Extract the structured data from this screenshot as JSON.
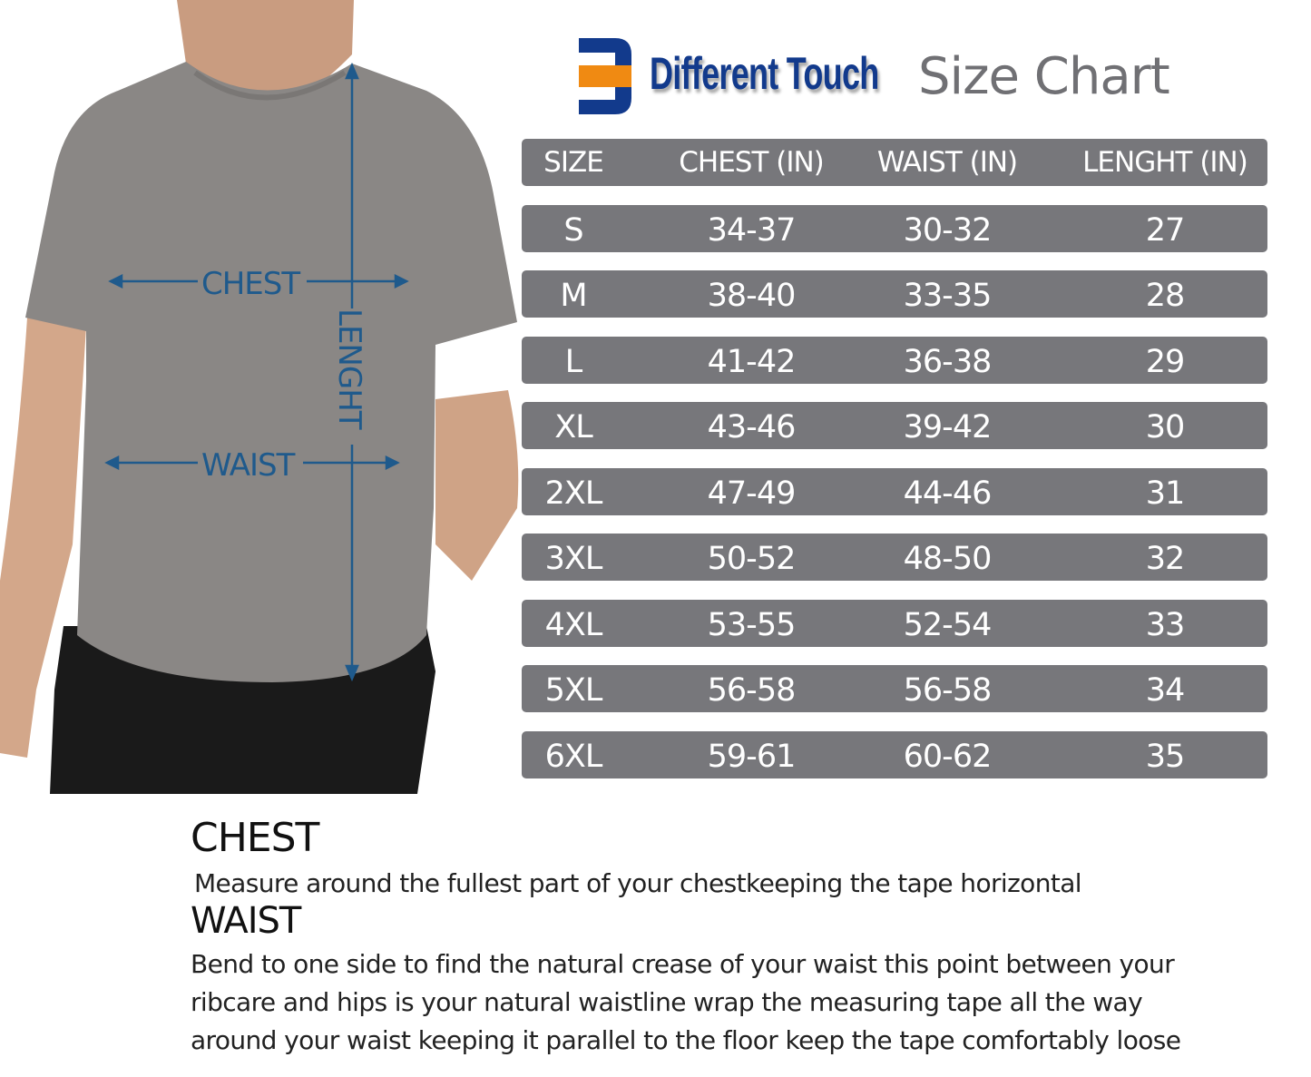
{
  "brand": {
    "name": "Different Touch",
    "title": "Size Chart",
    "colors": {
      "blue": "#123a8c",
      "orange": "#f08a12"
    }
  },
  "figure": {
    "labels": {
      "chest": "CHEST",
      "waist": "WAIST",
      "length": "LENGHT"
    },
    "line_color": "#1f5a8c"
  },
  "table": {
    "row_color": "#77777b",
    "headers": [
      "SIZE",
      "CHEST (IN)",
      "WAIST (IN)",
      "LENGHT (IN)"
    ],
    "rows": [
      [
        "S",
        "34-37",
        "30-32",
        "27"
      ],
      [
        "M",
        "38-40",
        "33-35",
        "28"
      ],
      [
        "L",
        "41-42",
        "36-38",
        "29"
      ],
      [
        "XL",
        "43-46",
        "39-42",
        "30"
      ],
      [
        "2XL",
        "47-49",
        "44-46",
        "31"
      ],
      [
        "3XL",
        "50-52",
        "48-50",
        "32"
      ],
      [
        "4XL",
        "53-55",
        "52-54",
        "33"
      ],
      [
        "5XL",
        "56-58",
        "56-58",
        "34"
      ],
      [
        "6XL",
        "59-61",
        "60-62",
        "35"
      ]
    ]
  },
  "instructions": {
    "chest_heading": "CHEST",
    "chest_text": "Measure around the fullest part of your chestkeeping the tape horizontal",
    "waist_heading": "WAIST",
    "waist_lines": [
      "Bend to one side to find the natural crease of your waist this point between your",
      "ribcare and hips is your natural waistline wrap the measuring tape all   the way",
      "around your waist keeping it parallel to the floor keep the tape comfortably loose"
    ]
  }
}
